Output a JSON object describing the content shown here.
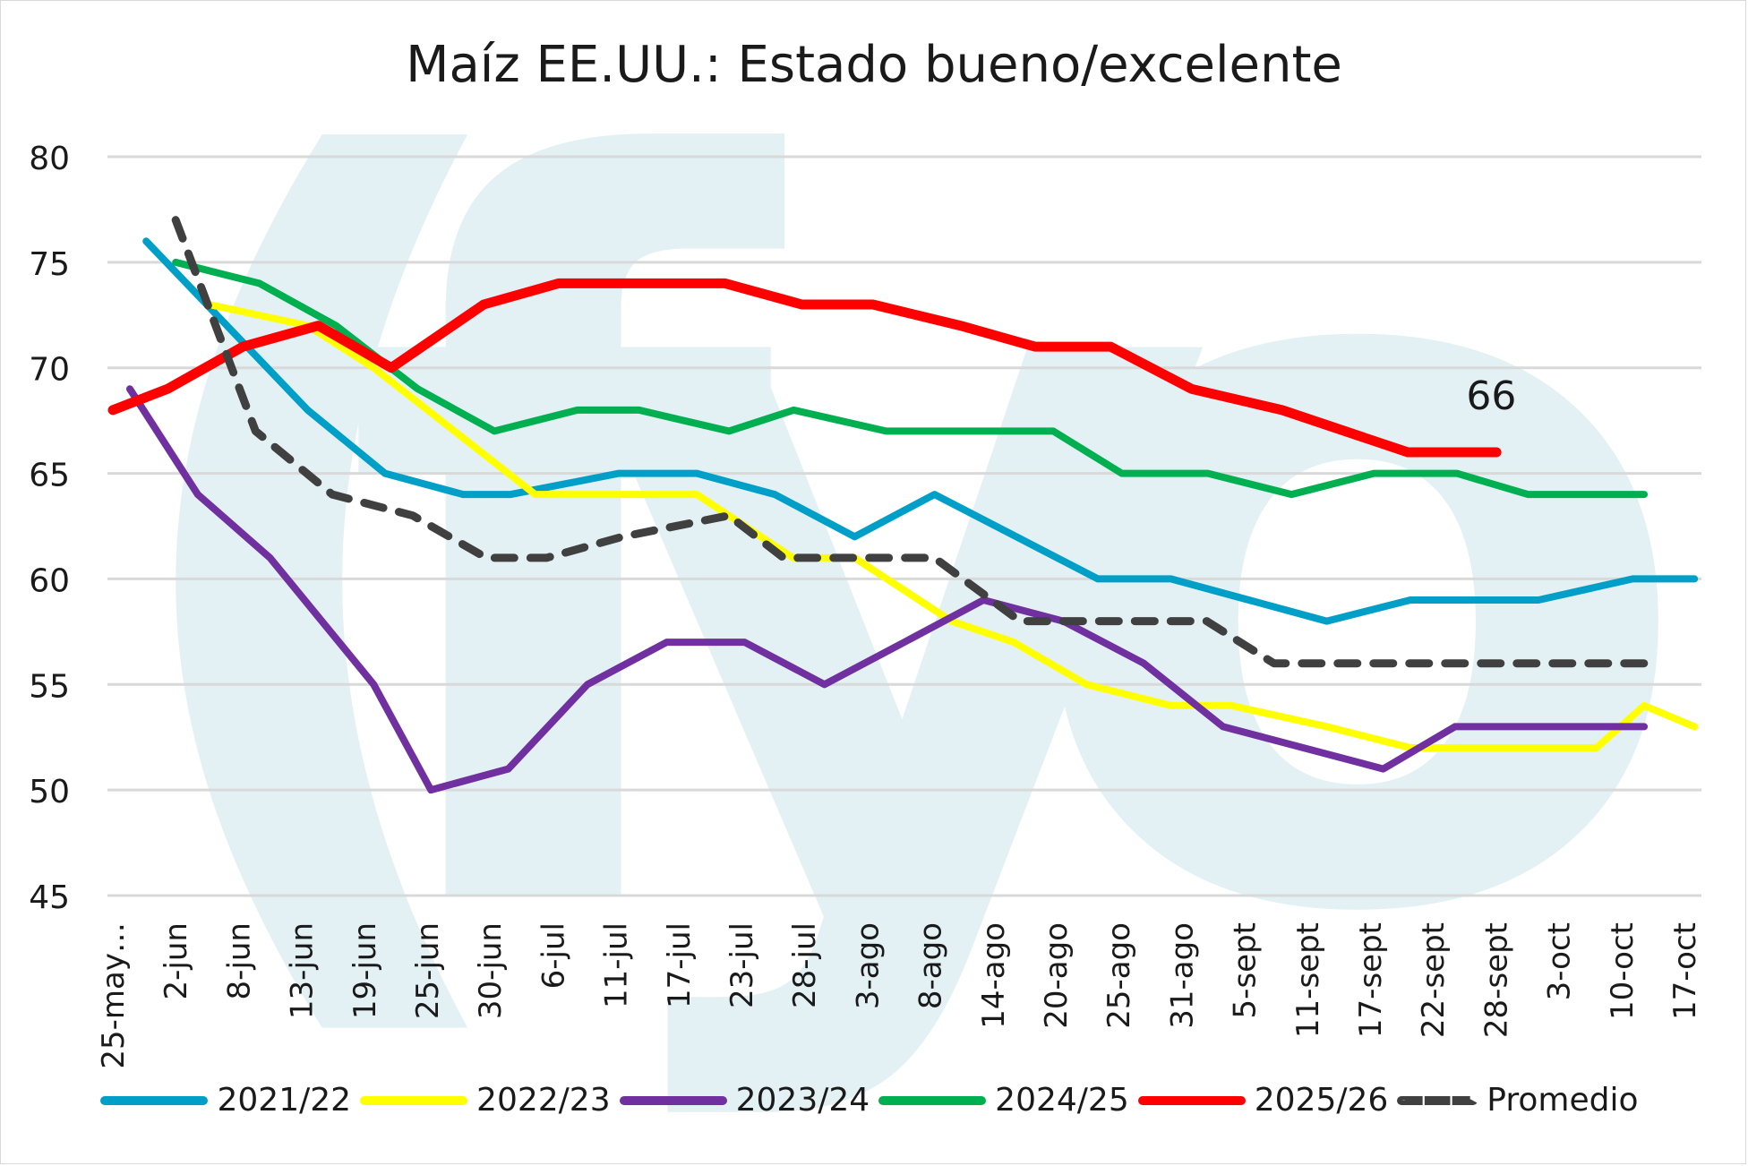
{
  "chart_data": {
    "type": "line",
    "title": "Maíz EE.UU.: Estado bueno/excelente",
    "xlabel": "",
    "ylabel": "",
    "ylim": [
      45,
      80
    ],
    "yticks": [
      "80",
      "75",
      "70",
      "65",
      "60",
      "55",
      "50",
      "45"
    ],
    "grid": true,
    "legend_position": "bottom",
    "categories": [
      "25-may…",
      "2-jun",
      "8-jun",
      "13-jun",
      "19-jun",
      "25-jun",
      "30-jun",
      "6-jul",
      "11-jul",
      "17-jul",
      "23-jul",
      "28-jul",
      "3-ago",
      "8-ago",
      "14-ago",
      "20-ago",
      "25-ago",
      "31-ago",
      "5-sept",
      "11-sept",
      "17-sept",
      "22-sept",
      "28-sept",
      "3-oct",
      "10-oct",
      "17-oct"
    ],
    "series": [
      {
        "name": "2021/22",
        "color": "#009fc7",
        "dash": false,
        "points": [
          [
            0.53,
            76
          ],
          [
            3.1,
            68
          ],
          [
            4.33,
            65
          ],
          [
            5.57,
            64
          ],
          [
            6.33,
            64
          ],
          [
            8.05,
            65
          ],
          [
            9.29,
            65
          ],
          [
            10.53,
            64
          ],
          [
            11.8,
            62
          ],
          [
            13.07,
            64
          ],
          [
            15.67,
            60
          ],
          [
            16.83,
            60
          ],
          [
            19.31,
            58
          ],
          [
            20.64,
            59
          ],
          [
            22.68,
            59
          ],
          [
            24.18,
            60
          ],
          [
            25.16,
            60
          ]
        ]
      },
      {
        "name": "2022/23",
        "color": "#ffff00",
        "dash": false,
        "points": [
          [
            1.53,
            73
          ],
          [
            3.1,
            72
          ],
          [
            4.15,
            70
          ],
          [
            6.72,
            64
          ],
          [
            9.29,
            64
          ],
          [
            10.82,
            61
          ],
          [
            11.8,
            61
          ],
          [
            13.34,
            58
          ],
          [
            14.33,
            57
          ],
          [
            15.49,
            55
          ],
          [
            16.83,
            54
          ],
          [
            17.79,
            54
          ],
          [
            19.31,
            53
          ],
          [
            20.64,
            52
          ],
          [
            21.35,
            52
          ],
          [
            22.68,
            52
          ],
          [
            23.6,
            52
          ],
          [
            24.36,
            54
          ],
          [
            25.16,
            53
          ]
        ]
      },
      {
        "name": "2023/24",
        "color": "#7030a0",
        "dash": false,
        "points": [
          [
            0.27,
            69
          ],
          [
            1.35,
            64
          ],
          [
            2.5,
            61
          ],
          [
            4.15,
            55
          ],
          [
            5.06,
            50
          ],
          [
            6.29,
            51
          ],
          [
            7.55,
            55
          ],
          [
            8.81,
            57
          ],
          [
            10.05,
            57
          ],
          [
            11.32,
            55
          ],
          [
            12.59,
            57
          ],
          [
            13.85,
            59
          ],
          [
            15.12,
            58
          ],
          [
            16.4,
            56
          ],
          [
            17.66,
            53
          ],
          [
            20.21,
            51
          ],
          [
            21.35,
            53
          ],
          [
            22.68,
            53
          ],
          [
            24.18,
            53
          ],
          [
            24.36,
            53
          ]
        ]
      },
      {
        "name": "2024/25",
        "color": "#00b050",
        "dash": false,
        "points": [
          [
            1.0,
            75
          ],
          [
            2.33,
            74
          ],
          [
            3.55,
            72
          ],
          [
            4.85,
            69
          ],
          [
            6.07,
            67
          ],
          [
            7.39,
            68
          ],
          [
            8.37,
            68
          ],
          [
            9.8,
            67
          ],
          [
            10.83,
            68
          ],
          [
            12.3,
            67
          ],
          [
            14.96,
            67
          ],
          [
            16.05,
            65
          ],
          [
            17.42,
            65
          ],
          [
            18.75,
            64
          ],
          [
            20.06,
            65
          ],
          [
            21.38,
            65
          ],
          [
            22.51,
            64
          ],
          [
            24.36,
            64
          ]
        ]
      },
      {
        "name": "2025/26",
        "color": "#ff0000",
        "dash": false,
        "points": [
          [
            0,
            68
          ],
          [
            0.87,
            69
          ],
          [
            2.07,
            71
          ],
          [
            3.27,
            72
          ],
          [
            4.43,
            70
          ],
          [
            5.9,
            73
          ],
          [
            7.09,
            74
          ],
          [
            9.74,
            74
          ],
          [
            10.96,
            73
          ],
          [
            12.09,
            73
          ],
          [
            13.48,
            72
          ],
          [
            14.67,
            71
          ],
          [
            15.87,
            71
          ],
          [
            17.16,
            69
          ],
          [
            18.6,
            68
          ],
          [
            20.6,
            66
          ],
          [
            21.2,
            66
          ],
          [
            22.01,
            66
          ]
        ]
      },
      {
        "name": "Promedio",
        "color": "#404040",
        "dash": true,
        "points": [
          [
            1.0,
            77
          ],
          [
            2.27,
            67
          ],
          [
            3.49,
            64
          ],
          [
            4.77,
            63
          ],
          [
            5.94,
            61
          ],
          [
            6.9,
            61
          ],
          [
            8.11,
            62
          ],
          [
            9.8,
            63
          ],
          [
            10.67,
            61
          ],
          [
            11.8,
            61
          ],
          [
            13.07,
            61
          ],
          [
            14.43,
            58
          ],
          [
            15.6,
            58
          ],
          [
            17.4,
            58
          ],
          [
            18.47,
            56
          ],
          [
            19.6,
            56
          ],
          [
            21.05,
            56
          ],
          [
            22.68,
            56
          ],
          [
            24.36,
            56
          ]
        ]
      }
    ],
    "annotations": [
      {
        "text": "66",
        "series": "2025/26",
        "at": 22.0,
        "value": 66
      }
    ]
  }
}
